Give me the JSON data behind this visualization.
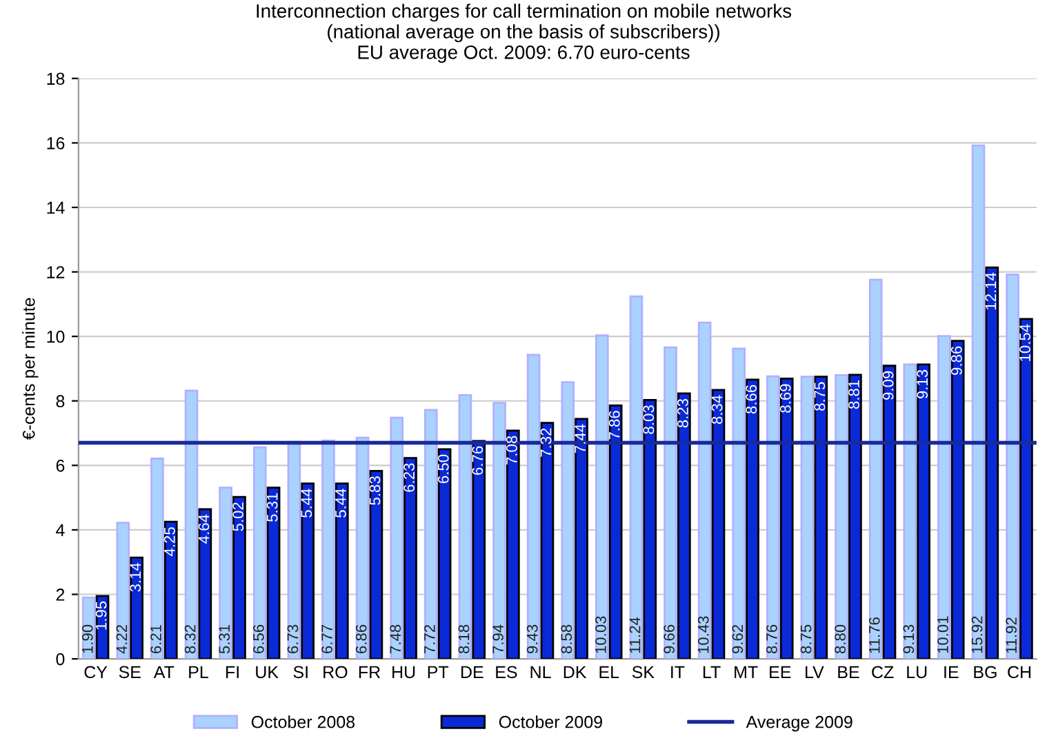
{
  "chart_data": {
    "type": "bar",
    "title": "Interconnection charges for call termination on mobile networks\n(national average on the basis of subscribers))\nEU average Oct. 2009: 6.70 euro-cents",
    "ylabel": "€-cents per minute",
    "categories": [
      "CY",
      "SE",
      "AT",
      "PL",
      "FI",
      "UK",
      "SI",
      "RO",
      "FR",
      "HU",
      "PT",
      "DE",
      "ES",
      "NL",
      "DK",
      "EL",
      "SK",
      "IT",
      "LT",
      "MT",
      "EE",
      "LV",
      "BE",
      "CZ",
      "LU",
      "IE",
      "BG",
      "CH"
    ],
    "series": [
      {
        "name": "October 2008",
        "color": "#aad2fe",
        "values": [
          1.9,
          4.22,
          6.21,
          8.32,
          5.31,
          6.56,
          6.73,
          6.77,
          6.86,
          7.48,
          7.72,
          8.18,
          7.94,
          9.43,
          8.58,
          10.03,
          11.24,
          9.66,
          10.43,
          9.62,
          8.76,
          8.75,
          8.8,
          11.76,
          9.13,
          10.01,
          15.92,
          11.92
        ],
        "value_labels": [
          "1.90",
          "4.22",
          "6.21",
          "8.32",
          "5.31",
          "6.56",
          "6.73",
          "6.77",
          "6.86",
          "7.48",
          "7.72",
          "8.18",
          "7.94",
          "9.43",
          "8.58",
          "10.03",
          "11.24",
          "9.66",
          "10.43",
          "9.62",
          "8.76",
          "8.75",
          "8.80",
          "11.76",
          "9.13",
          "10.01",
          "15.92",
          "11.92"
        ]
      },
      {
        "name": "October 2009",
        "color": "#0a2ad8",
        "values": [
          1.95,
          3.14,
          4.25,
          4.64,
          5.02,
          5.31,
          5.44,
          5.44,
          5.83,
          6.23,
          6.5,
          6.76,
          7.08,
          7.32,
          7.44,
          7.86,
          8.03,
          8.23,
          8.34,
          8.66,
          8.69,
          8.75,
          8.81,
          9.09,
          9.13,
          9.86,
          12.14,
          10.54
        ],
        "value_labels": [
          "1.95",
          "3.14",
          "4.25",
          "4.64",
          "5.02",
          "5.31",
          "5.44",
          "5.44",
          "5.83",
          "6.23",
          "6.50",
          "6.76",
          "7.08",
          "7.32",
          "7.44",
          "7.86",
          "8.03",
          "8.23",
          "8.34",
          "8.66",
          "8.69",
          "8.75",
          "8.81",
          "9.09",
          "9.13",
          "9.86",
          "12.14",
          "10.54"
        ]
      }
    ],
    "ref_lines": [
      {
        "axis": "y",
        "value": 6.7,
        "label": "Average 2009",
        "color": "#1a2a9a",
        "line_style": "solid"
      }
    ],
    "ylim": [
      0,
      18
    ],
    "yticks": [
      0,
      2,
      4,
      6,
      8,
      10,
      12,
      14,
      16,
      18
    ],
    "grid": "y",
    "legend": "bottom"
  }
}
